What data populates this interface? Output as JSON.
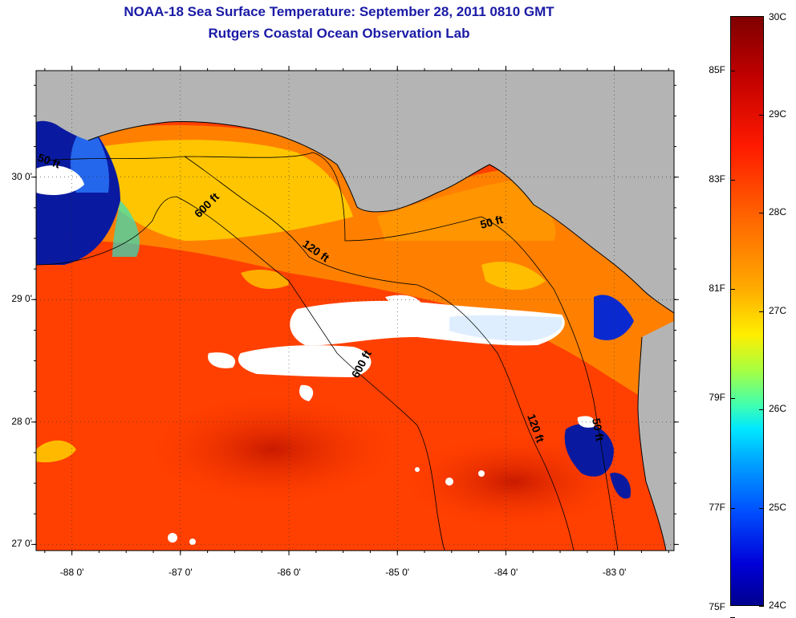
{
  "title": {
    "line1": "NOAA-18 Sea Surface Temperature:  September 28, 2011 0810 GMT",
    "line2": "Rutgers Coastal Ocean Observation Lab"
  },
  "map": {
    "lon_range": [
      -88.33,
      -82.45
    ],
    "lat_range": [
      26.95,
      30.87
    ],
    "lon_ticks": [
      {
        "value": -88,
        "label": "-88 0'"
      },
      {
        "value": -87,
        "label": "-87 0'"
      },
      {
        "value": -86,
        "label": "-86 0'"
      },
      {
        "value": -85,
        "label": "-85 0'"
      },
      {
        "value": -84,
        "label": "-84 0'"
      },
      {
        "value": -83,
        "label": "-83 0'"
      }
    ],
    "lat_ticks": [
      {
        "value": 30,
        "label": "30 0'"
      },
      {
        "value": 29,
        "label": "29 0'"
      },
      {
        "value": 28,
        "label": "28 0'"
      },
      {
        "value": 27,
        "label": "27 0'"
      }
    ],
    "land_color": "#b4b4b4",
    "cloud_color": "#ffffff",
    "contour_labels": [
      "50 ft",
      "600 ft",
      "120 ft",
      "50 ft",
      "600 ft",
      "120 ft",
      "50 ft"
    ]
  },
  "colorbar": {
    "fahrenheit_labels": [
      {
        "value": 85,
        "label": "85F"
      },
      {
        "value": 83,
        "label": "83F"
      },
      {
        "value": 81,
        "label": "81F"
      },
      {
        "value": 79,
        "label": "79F"
      },
      {
        "value": 77,
        "label": "77F"
      },
      {
        "value": 75,
        "label": "75F"
      }
    ],
    "celsius_labels": [
      {
        "value": 30,
        "label": "30C"
      },
      {
        "value": 29,
        "label": "29C"
      },
      {
        "value": 28,
        "label": "28C"
      },
      {
        "value": 27,
        "label": "27C"
      },
      {
        "value": 26,
        "label": "26C"
      },
      {
        "value": 25,
        "label": "25C"
      },
      {
        "value": 24,
        "label": "24C"
      }
    ],
    "range_c": [
      24,
      30
    ]
  }
}
